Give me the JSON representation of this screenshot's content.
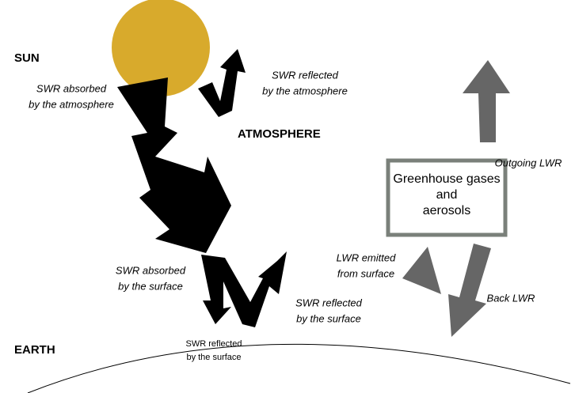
{
  "labels": {
    "sun": "SUN",
    "atmosphere": "ATMOSPHERE",
    "earth": "EARTH"
  },
  "annotations": [
    {
      "lines": [
        "SWR absorbed",
        "by the atmosphere"
      ]
    },
    {
      "lines": [
        "SWR reflected",
        "by the atmosphere"
      ]
    },
    {
      "lines": [
        "Outgoing LWR"
      ]
    },
    {
      "lines": [
        "LWR emitted",
        "from surface"
      ]
    },
    {
      "lines": [
        "Back LWR"
      ]
    },
    {
      "lines": [
        "SWR absorbed",
        "by the surface"
      ]
    },
    {
      "lines": [
        "SWR reflected",
        "by the surface"
      ]
    },
    {
      "lines": [
        "SWR reflected",
        "by the surface"
      ]
    }
  ],
  "box": {
    "lines": [
      "Greenhouse gases",
      "and",
      "aerosols"
    ]
  }
}
